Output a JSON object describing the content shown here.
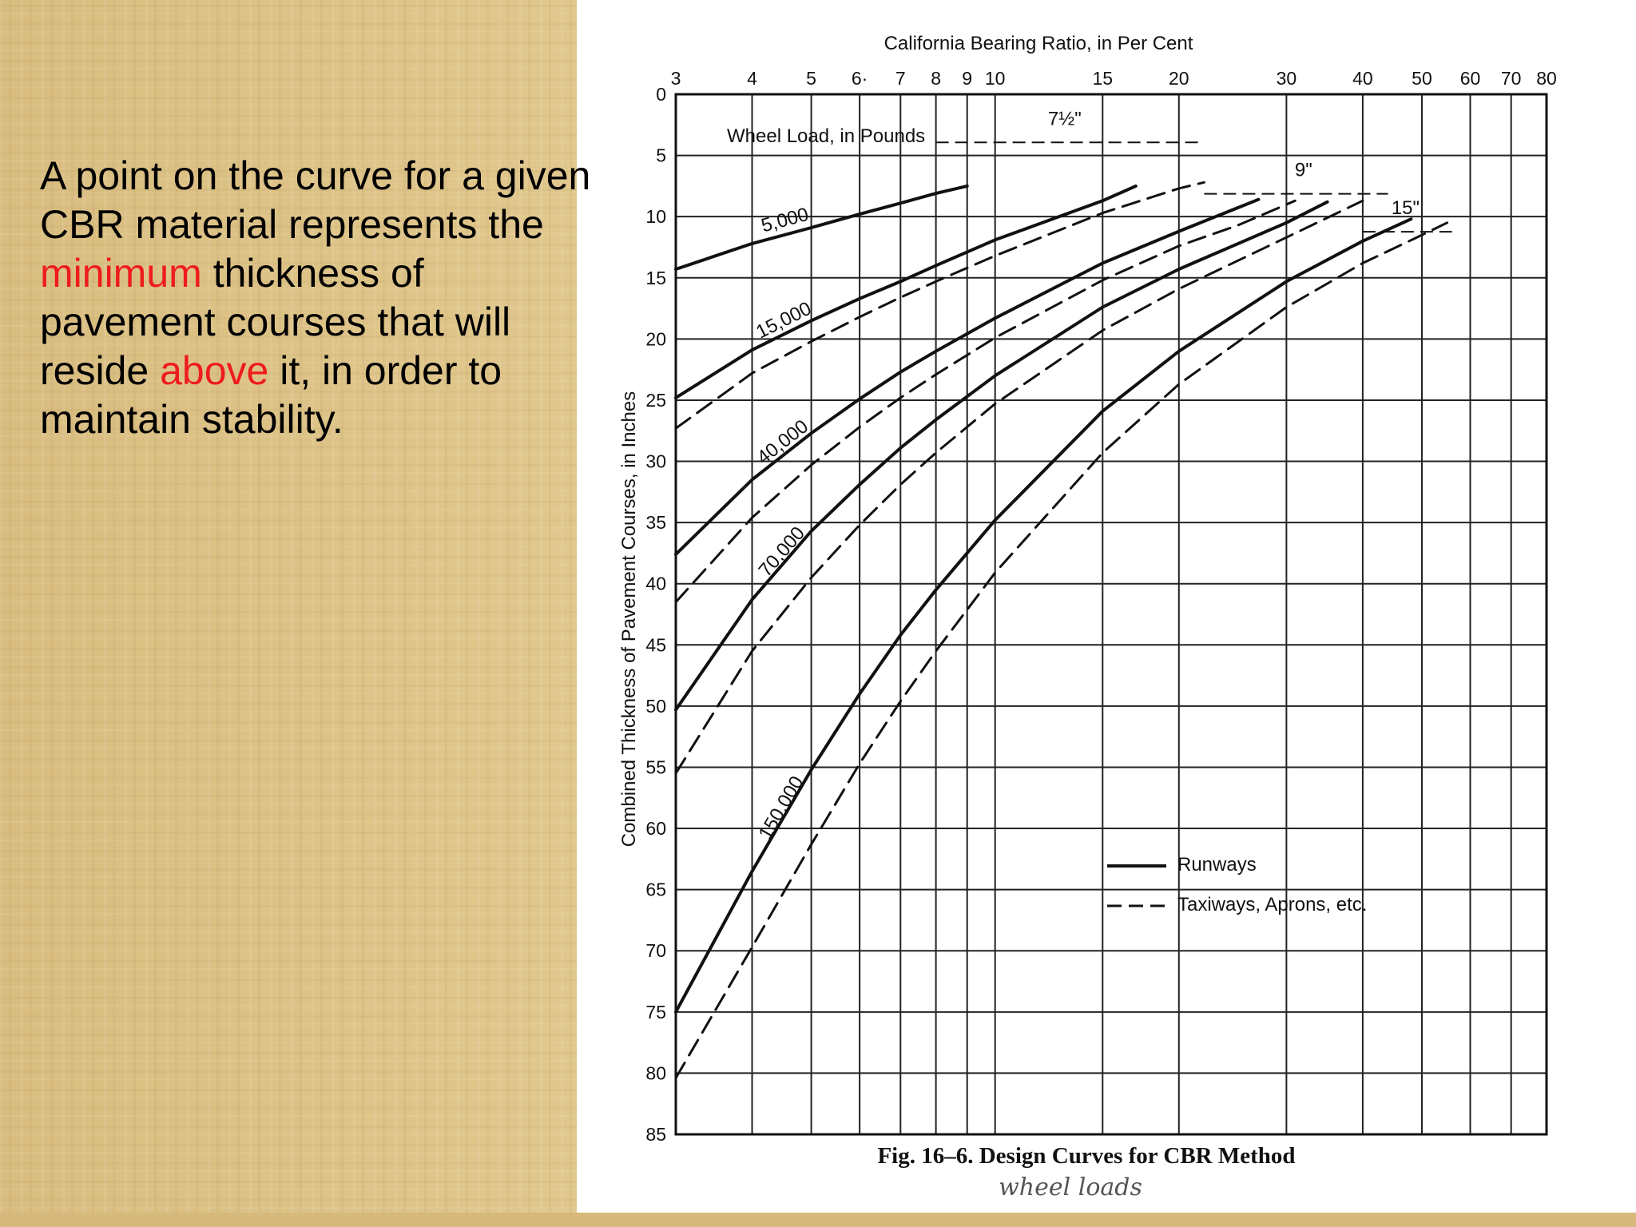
{
  "slide": {
    "text_parts": [
      {
        "text": "A point on the curve for a given CBR material represents the ",
        "highlight": false
      },
      {
        "text": "minimum",
        "highlight": true
      },
      {
        "text": " thickness of pavement courses that will reside ",
        "highlight": false
      },
      {
        "text": "above",
        "highlight": true
      },
      {
        "text": " it, in order to maintain stability.",
        "highlight": false
      }
    ],
    "highlight_color": "#ee1c1c"
  },
  "chart_data": {
    "type": "line",
    "title": "California Bearing Ratio, in Per Cent",
    "xlabel": "California Bearing Ratio, in Per Cent",
    "ylabel": "Combined Thickness of Pavement Courses, in Inches",
    "x_scale": "log",
    "xlim": [
      3,
      80
    ],
    "ylim": [
      0,
      85
    ],
    "y_inverted": true,
    "x_ticks": [
      3,
      4,
      5,
      6,
      7,
      8,
      9,
      10,
      15,
      20,
      30,
      40,
      50,
      60,
      70,
      80
    ],
    "x_tick_labels": [
      "3",
      "4",
      "5",
      "6·",
      "7",
      "8",
      "9",
      "10",
      "15",
      "20",
      "30",
      "40",
      "50",
      "60",
      "70",
      "80"
    ],
    "y_ticks": [
      0,
      5,
      10,
      15,
      20,
      25,
      30,
      35,
      40,
      45,
      50,
      55,
      60,
      65,
      70,
      75,
      80,
      85
    ],
    "grid": true,
    "legend_title": "Wheel Load, in Pounds",
    "legend": [
      {
        "label": "Runways",
        "style": "solid"
      },
      {
        "label": "Taxiways, Aprons, etc.",
        "style": "dashed"
      }
    ],
    "series": [
      {
        "name": "5,000",
        "style": "solid",
        "points": [
          [
            3,
            14.3
          ],
          [
            4,
            12.2
          ],
          [
            5,
            10.9
          ],
          [
            6,
            9.8
          ],
          [
            7,
            8.9
          ],
          [
            8,
            8.1
          ],
          [
            9,
            7.5
          ]
        ]
      },
      {
        "name": "15,000",
        "style": "solid",
        "points": [
          [
            3,
            24.8
          ],
          [
            4,
            20.9
          ],
          [
            5,
            18.5
          ],
          [
            6,
            16.7
          ],
          [
            7,
            15.3
          ],
          [
            8,
            14.0
          ],
          [
            10,
            11.9
          ],
          [
            15,
            8.7
          ],
          [
            17,
            7.5
          ]
        ]
      },
      {
        "name": "",
        "style": "dashed",
        "points": [
          [
            3,
            27.3
          ],
          [
            4,
            22.8
          ],
          [
            5,
            20.2
          ],
          [
            6,
            18.2
          ],
          [
            7,
            16.6
          ],
          [
            8,
            15.3
          ],
          [
            10,
            13.2
          ],
          [
            15,
            9.7
          ],
          [
            20,
            7.7
          ],
          [
            22,
            7.2
          ]
        ]
      },
      {
        "name": "40,000",
        "style": "solid",
        "points": [
          [
            3,
            37.6
          ],
          [
            4,
            31.5
          ],
          [
            5,
            27.7
          ],
          [
            6,
            24.9
          ],
          [
            7,
            22.7
          ],
          [
            8,
            21.0
          ],
          [
            10,
            18.3
          ],
          [
            15,
            13.8
          ],
          [
            20,
            11.2
          ],
          [
            27,
            8.6
          ]
        ]
      },
      {
        "name": "",
        "style": "dashed",
        "points": [
          [
            3,
            41.5
          ],
          [
            4,
            34.6
          ],
          [
            5,
            30.3
          ],
          [
            6,
            27.2
          ],
          [
            7,
            24.8
          ],
          [
            8,
            22.9
          ],
          [
            10,
            19.9
          ],
          [
            15,
            15.2
          ],
          [
            20,
            12.4
          ],
          [
            25,
            10.7
          ],
          [
            31,
            8.7
          ]
        ]
      },
      {
        "name": "70,000",
        "style": "solid",
        "points": [
          [
            3,
            50.3
          ],
          [
            4,
            41.3
          ],
          [
            5,
            35.7
          ],
          [
            6,
            31.9
          ],
          [
            7,
            28.9
          ],
          [
            8,
            26.6
          ],
          [
            10,
            23.0
          ],
          [
            15,
            17.4
          ],
          [
            20,
            14.3
          ],
          [
            30,
            10.5
          ],
          [
            35,
            8.8
          ]
        ]
      },
      {
        "name": "",
        "style": "dashed",
        "points": [
          [
            3,
            55.5
          ],
          [
            4,
            45.5
          ],
          [
            5,
            39.5
          ],
          [
            6,
            35.2
          ],
          [
            7,
            31.9
          ],
          [
            8,
            29.3
          ],
          [
            10,
            25.3
          ],
          [
            15,
            19.3
          ],
          [
            20,
            15.9
          ],
          [
            30,
            11.7
          ],
          [
            40,
            8.7
          ]
        ]
      },
      {
        "name": "150,000",
        "style": "solid",
        "points": [
          [
            3,
            75.0
          ],
          [
            4,
            63.5
          ],
          [
            5,
            55.2
          ],
          [
            6,
            49.0
          ],
          [
            7,
            44.2
          ],
          [
            8,
            40.5
          ],
          [
            10,
            34.8
          ],
          [
            15,
            25.9
          ],
          [
            20,
            21.0
          ],
          [
            30,
            15.3
          ],
          [
            40,
            12.0
          ],
          [
            48,
            10.2
          ]
        ]
      },
      {
        "name": "",
        "style": "dashed",
        "points": [
          [
            3,
            80.4
          ],
          [
            4,
            69.7
          ],
          [
            5,
            61.3
          ],
          [
            6,
            54.7
          ],
          [
            7,
            49.6
          ],
          [
            8,
            45.5
          ],
          [
            10,
            39.1
          ],
          [
            15,
            29.3
          ],
          [
            20,
            23.7
          ],
          [
            30,
            17.4
          ],
          [
            40,
            13.8
          ],
          [
            50,
            11.5
          ],
          [
            55,
            10.5
          ]
        ]
      }
    ],
    "annotations": [
      {
        "text": "7½\"",
        "at": [
          13,
          2.5
        ]
      },
      {
        "text": "9\"",
        "at": [
          32,
          6.7
        ]
      },
      {
        "text": "15\"",
        "at": [
          47,
          9.8
        ]
      }
    ],
    "caption": "Fig. 16–6. Design Curves for CBR Method",
    "handwritten_note": "wheel loads"
  }
}
